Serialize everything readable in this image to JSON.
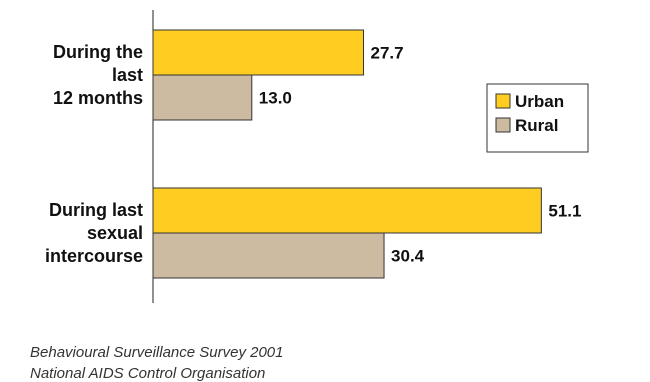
{
  "chart_data": {
    "type": "bar",
    "orientation": "horizontal",
    "categories": [
      [
        "During the",
        "last",
        "12 months"
      ],
      [
        "During last",
        "sexual",
        "intercourse"
      ]
    ],
    "series": [
      {
        "name": "Urban",
        "values": [
          27.7,
          51.1
        ],
        "labels": [
          "27.7",
          "51.1"
        ],
        "color": "#FFCC22"
      },
      {
        "name": "Rural",
        "values": [
          13.0,
          30.4
        ],
        "labels": [
          "13.0",
          "30.4"
        ],
        "color": "#CCBBA0"
      }
    ],
    "xlim": [
      0,
      60
    ],
    "grid": false,
    "legend_position": "right",
    "title": "",
    "xlabel": "",
    "ylabel": ""
  },
  "source": {
    "line1": "Behavioural Surveillance Survey 2001",
    "line2": "National AIDS Control Organisation"
  }
}
